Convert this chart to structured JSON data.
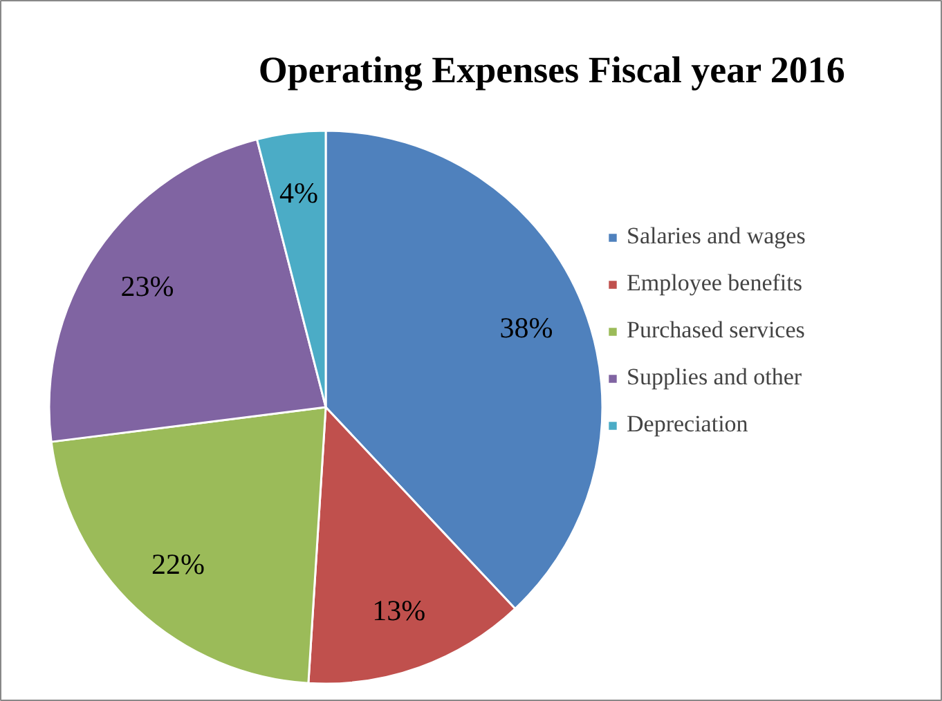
{
  "chart_data": {
    "type": "pie",
    "title": "Operating Expenses  Fiscal year 2016",
    "categories": [
      "Salaries and wages",
      "Employee benefits",
      "Purchased services",
      "Supplies and other",
      "Depreciation"
    ],
    "values": [
      38,
      13,
      22,
      23,
      4
    ],
    "colors": [
      "#4f81bd",
      "#c0504d",
      "#9bbb59",
      "#8064a2",
      "#4bacc6"
    ],
    "value_labels": [
      "38%",
      "13%",
      "22%",
      "23%",
      "4%"
    ],
    "legend": "right"
  }
}
